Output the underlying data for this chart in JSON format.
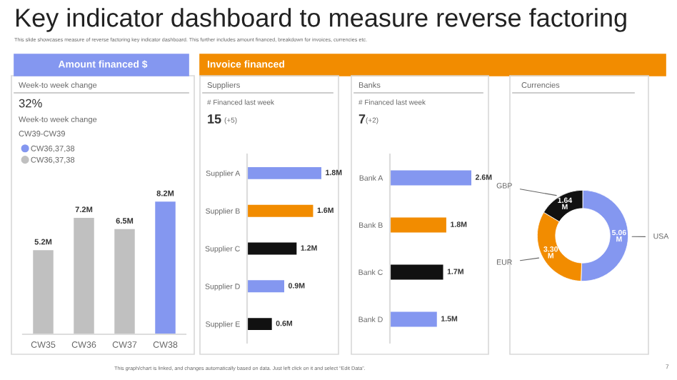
{
  "chart_data": [
    {
      "type": "other",
      "title": "Key indicator dashboard to measure reverse factoring",
      "subtitle": "This slide showcases measure of reverse factoring key indicator dashboard. This further includes amount financed, breakdown for invoices, currencies etc.",
      "annotations": [
        "Invoice financed",
        "This graph/chart is linked, and changes automatically based on data. Just left click on it and select “Edit Data”.",
        "7"
      ]
    },
    {
      "type": "bar",
      "title": "Amount financed $",
      "subtitle": "Week-to week change",
      "annotations": [
        "32%",
        "Week-to week change",
        "CW39-CW39"
      ],
      "categories": [
        "CW35",
        "CW36",
        "CW37",
        "CW38"
      ],
      "legend": "top left",
      "series": [
        {
          "name": "CW36,37,38",
          "color": "#8497f0",
          "values": [
            null,
            null,
            null,
            8.2
          ],
          "value_labels": [
            null,
            null,
            null,
            "8.2M"
          ]
        },
        {
          "name": "CW36,37,38",
          "color": "#c0c0c0",
          "values": [
            5.2,
            7.2,
            6.5,
            null
          ],
          "value_labels": [
            "5.2M",
            "7.2M",
            "6.5M",
            null
          ]
        }
      ]
    },
    {
      "type": "bar",
      "orientation": "horizontal",
      "title": "Suppliers",
      "subtitle": "# Financed last week",
      "annotations": [
        "15",
        "(+5)"
      ],
      "categories": [
        "Supplier A",
        "Supplier B",
        "Supplier C",
        "Supplier D",
        "Supplier E"
      ],
      "values": [
        1.8,
        1.6,
        1.2,
        0.9,
        0.6
      ],
      "colors": [
        "#8497f0",
        "#f28c00",
        "#111111",
        "#8497f0",
        "#111111"
      ],
      "value_labels": [
        "1.8M",
        "1.6M",
        "1.2M",
        "0.9M",
        "0.6M"
      ]
    },
    {
      "type": "bar",
      "orientation": "horizontal",
      "title": "Banks",
      "subtitle": "# Financed last week",
      "annotations": [
        "7",
        "(+2)"
      ],
      "categories": [
        "Bank A",
        "Bank B",
        "Bank C",
        "Bank D"
      ],
      "values": [
        2.6,
        1.8,
        1.7,
        1.5
      ],
      "colors": [
        "#8497f0",
        "#f28c00",
        "#111111",
        "#8497f0"
      ],
      "value_labels": [
        "2.6M",
        "1.8M",
        "1.7M",
        "1.5M"
      ]
    },
    {
      "type": "donut",
      "title": "Currencies",
      "categories": [
        "USA",
        "EUR",
        "GBP"
      ],
      "values": [
        5.06,
        3.3,
        1.64
      ],
      "colors": [
        "#8497f0",
        "#f28c00",
        "#111111"
      ],
      "value_labels": [
        "5.06\nM",
        "3.30\nM",
        "1.64\nM"
      ]
    }
  ]
}
